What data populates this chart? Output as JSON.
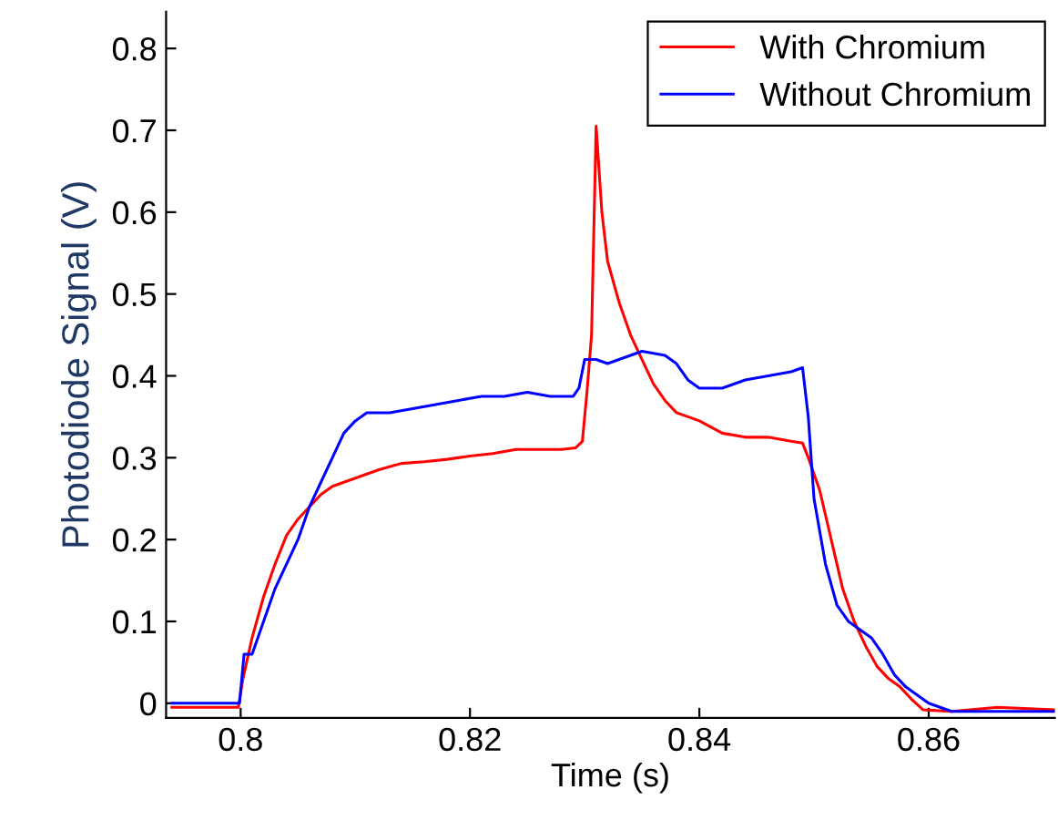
{
  "chart_data": {
    "type": "line",
    "xlabel": "Time (s)",
    "ylabel": "Photodiode Signal (V)",
    "xlim": [
      0.7935,
      0.871
    ],
    "xticks": [
      {
        "value": 0.8,
        "label": "0.8"
      },
      {
        "value": 0.82,
        "label": "0.82"
      },
      {
        "value": 0.84,
        "label": "0.84"
      },
      {
        "value": 0.86,
        "label": "0.86"
      }
    ],
    "ylim": [
      -0.018,
      0.845
    ],
    "yticks": [
      {
        "value": 0,
        "label": "0"
      },
      0.1,
      0.2,
      0.3,
      0.4,
      0.5,
      0.6,
      0.7,
      0.8
    ],
    "grid": false,
    "legend": "top right",
    "marker": "none",
    "line_style": "solid",
    "series": [
      {
        "name": "With Chromium",
        "color": "#ff0000",
        "x": [
          0.794,
          0.797,
          0.7998,
          0.8002,
          0.801,
          0.802,
          0.803,
          0.804,
          0.805,
          0.806,
          0.807,
          0.808,
          0.81,
          0.812,
          0.814,
          0.816,
          0.818,
          0.82,
          0.822,
          0.824,
          0.826,
          0.828,
          0.8292,
          0.8298,
          0.8302,
          0.8306,
          0.831,
          0.8315,
          0.832,
          0.833,
          0.834,
          0.835,
          0.836,
          0.837,
          0.838,
          0.839,
          0.84,
          0.842,
          0.844,
          0.846,
          0.848,
          0.849,
          0.8495,
          0.8505,
          0.8515,
          0.8525,
          0.8535,
          0.8545,
          0.8555,
          0.8565,
          0.8575,
          0.8585,
          0.8595,
          0.862,
          0.866,
          0.871
        ],
        "values": [
          -0.005,
          -0.005,
          -0.005,
          0.03,
          0.08,
          0.13,
          0.17,
          0.205,
          0.225,
          0.24,
          0.255,
          0.265,
          0.275,
          0.285,
          0.293,
          0.295,
          0.298,
          0.302,
          0.305,
          0.31,
          0.31,
          0.31,
          0.312,
          0.32,
          0.38,
          0.45,
          0.705,
          0.6,
          0.54,
          0.49,
          0.45,
          0.42,
          0.39,
          0.37,
          0.355,
          0.35,
          0.345,
          0.33,
          0.325,
          0.325,
          0.32,
          0.318,
          0.3,
          0.26,
          0.2,
          0.14,
          0.1,
          0.07,
          0.045,
          0.03,
          0.02,
          0.005,
          -0.008,
          -0.01,
          -0.005,
          -0.008
        ]
      },
      {
        "name": "Without Chromium",
        "color": "#0000ff",
        "x": [
          0.794,
          0.797,
          0.7999,
          0.8003,
          0.801,
          0.802,
          0.803,
          0.804,
          0.805,
          0.806,
          0.807,
          0.808,
          0.809,
          0.81,
          0.811,
          0.813,
          0.815,
          0.817,
          0.819,
          0.821,
          0.823,
          0.825,
          0.827,
          0.829,
          0.8295,
          0.83,
          0.831,
          0.832,
          0.833,
          0.835,
          0.837,
          0.838,
          0.839,
          0.84,
          0.842,
          0.844,
          0.846,
          0.848,
          0.849,
          0.8495,
          0.85,
          0.851,
          0.852,
          0.853,
          0.854,
          0.855,
          0.856,
          0.857,
          0.858,
          0.859,
          0.86,
          0.862,
          0.866,
          0.871
        ],
        "values": [
          0.0,
          0.0,
          0.0,
          0.06,
          0.06,
          0.1,
          0.14,
          0.17,
          0.2,
          0.24,
          0.27,
          0.3,
          0.33,
          0.345,
          0.355,
          0.355,
          0.36,
          0.365,
          0.37,
          0.375,
          0.375,
          0.38,
          0.375,
          0.375,
          0.385,
          0.42,
          0.42,
          0.415,
          0.42,
          0.43,
          0.425,
          0.415,
          0.395,
          0.385,
          0.385,
          0.395,
          0.4,
          0.405,
          0.41,
          0.35,
          0.25,
          0.17,
          0.12,
          0.1,
          0.09,
          0.08,
          0.06,
          0.035,
          0.02,
          0.01,
          0.0,
          -0.01,
          -0.01,
          -0.01
        ]
      }
    ]
  }
}
